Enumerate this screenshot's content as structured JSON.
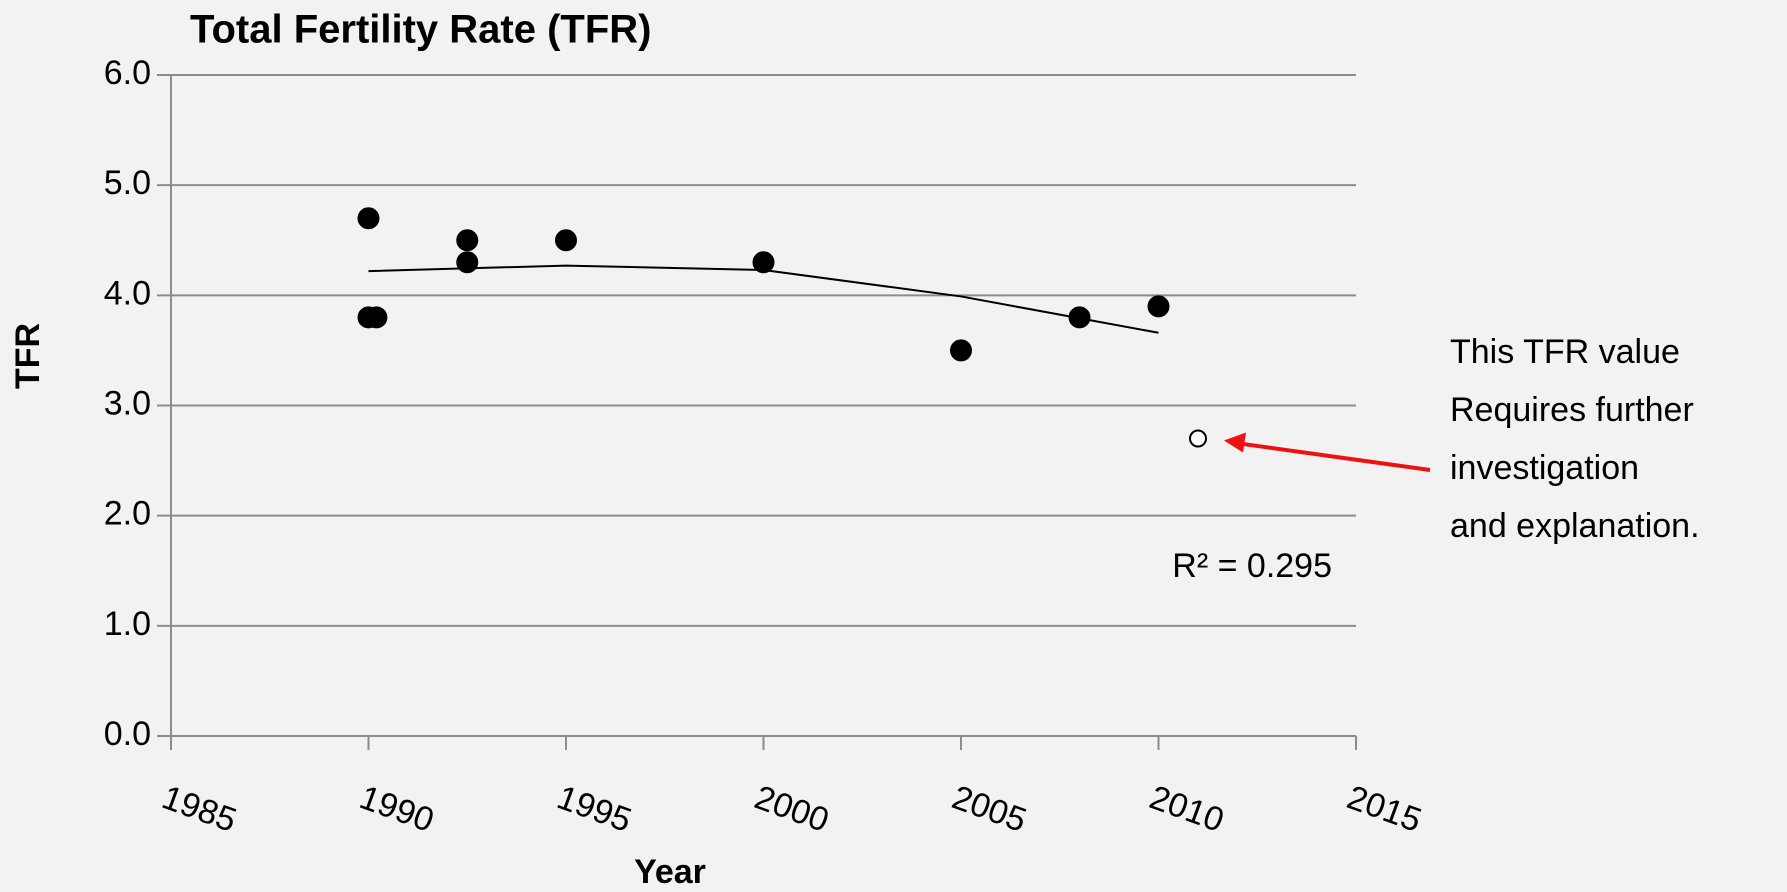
{
  "chart_data": {
    "type": "scatter",
    "title": "Total Fertility Rate (TFR)",
    "x_label": "Year",
    "y_label": "TFR",
    "series": [
      {
        "color": "#000000",
        "marker": "filled",
        "x": [
          1990,
          1990,
          1990.2,
          1992.5,
          1992.5,
          1995,
          2000,
          2005,
          2008,
          2010
        ],
        "values": [
          4.7,
          3.8,
          3.8,
          4.5,
          4.3,
          4.5,
          4.3,
          3.5,
          3.8,
          3.9
        ]
      },
      {
        "color": "#000000",
        "marker": "open",
        "x": [
          2011
        ],
        "values": [
          2.7
        ]
      }
    ],
    "trendline": {
      "color": "#000000",
      "x": [
        1990,
        1995,
        2000,
        2005,
        2010
      ],
      "values": [
        4.22,
        4.27,
        4.23,
        3.99,
        3.66
      ]
    },
    "annotations": [
      "R² = 0.295",
      "This TFR value",
      "Requires further",
      "investigation",
      "and explanation."
    ],
    "arrow_color": "#ee1111",
    "xlim": [
      1985,
      2015
    ],
    "xticks": [
      1985,
      1990,
      1995,
      2000,
      2005,
      2010,
      2015
    ],
    "ylim": [
      0,
      6
    ],
    "yticks": [
      {
        "value": 0,
        "label": "0.0"
      },
      {
        "value": 1,
        "label": "1.0"
      },
      {
        "value": 2,
        "label": "2.0"
      },
      {
        "value": 3,
        "label": "3.0"
      },
      {
        "value": 4,
        "label": "4.0"
      },
      {
        "value": 5,
        "label": "5.0"
      },
      {
        "value": 6,
        "label": "6.0"
      }
    ],
    "grid": true
  }
}
